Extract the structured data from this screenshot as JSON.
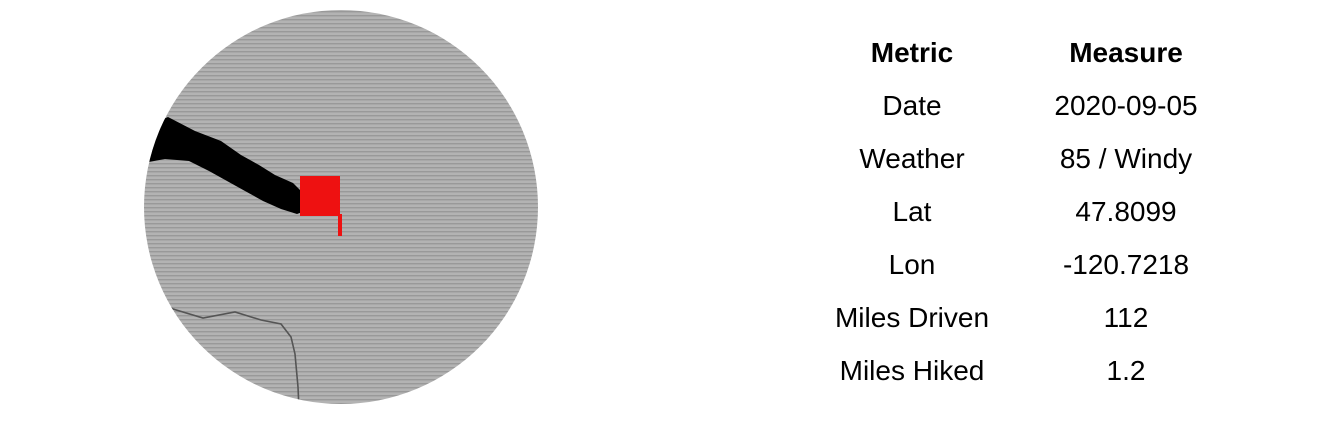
{
  "map": {
    "location_marker_color": "#ee1111",
    "route_color": "#000000",
    "boundary_color": "#555555",
    "land_color": "#b3b3b3",
    "stripe_color": "#999999"
  },
  "table": {
    "headers": {
      "metric": "Metric",
      "measure": "Measure"
    },
    "rows": [
      {
        "metric": "Date",
        "measure": "2020-09-05"
      },
      {
        "metric": "Weather",
        "measure": "85 / Windy"
      },
      {
        "metric": "Lat",
        "measure": "47.8099"
      },
      {
        "metric": "Lon",
        "measure": "-120.7218"
      },
      {
        "metric": "Miles Driven",
        "measure": "112"
      },
      {
        "metric": "Miles Hiked",
        "measure": "1.2"
      }
    ]
  }
}
